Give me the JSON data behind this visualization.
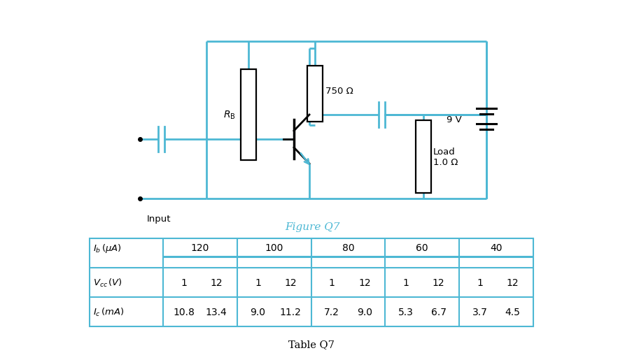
{
  "figure_title": "Figure Q7",
  "table_title": "Table Q7",
  "circuit_color": "#4db8d4",
  "background_color": "#ffffff",
  "table_border_color": "#4db8d4",
  "ib_values": [
    "120",
    "100",
    "80",
    "60",
    "40"
  ],
  "vcc_values": [
    "1",
    "12",
    "1",
    "12",
    "1",
    "12",
    "1",
    "12",
    "1",
    "12"
  ],
  "ic_values": [
    "10.8",
    "13.4",
    "9.0",
    "11.2",
    "7.2",
    "9.0",
    "5.3",
    "6.7",
    "3.7",
    "4.5"
  ],
  "resistor_rb_label": "$R_{\\mathrm{B}}$",
  "resistor_750_label": "750 Ω",
  "load_label": "Load\n1.0 Ω",
  "voltage_label": "9 V",
  "input_label": "Input"
}
